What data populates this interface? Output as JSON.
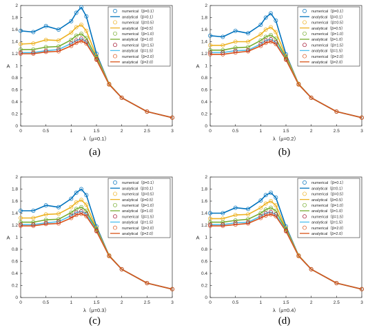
{
  "figure": {
    "panels": [
      {
        "caption": "(a)",
        "xlabel": "λ（μ=0.1）"
      },
      {
        "caption": "(b)",
        "xlabel": "λ（μ=0.2）"
      },
      {
        "caption": "(c)",
        "xlabel": "λ（μ=0.3）"
      },
      {
        "caption": "(d)",
        "xlabel": "λ（μ=0.4）"
      }
    ]
  },
  "chart_data": [
    {
      "type": "line",
      "title": "",
      "xlabel": "λ（μ=0.1）",
      "ylabel": "A",
      "xlim": [
        0,
        3
      ],
      "ylim": [
        0,
        2
      ],
      "xticks": [
        "0",
        "0.5",
        "1",
        "1.5",
        "2",
        "2.5",
        "3"
      ],
      "yticks": [
        "0",
        "0.2",
        "0.4",
        "0.6",
        "0.8",
        "1",
        "1.2",
        "1.4",
        "1.6",
        "1.8",
        "2"
      ],
      "grid": false,
      "legend_position": "top-right",
      "x": [
        0,
        0.25,
        0.5,
        0.75,
        1.0,
        1.1,
        1.2,
        1.3,
        1.5,
        1.75,
        2.0,
        2.5,
        3.0
      ],
      "series": [
        {
          "name": "numerical（β=0.1）",
          "color": "#0072BD",
          "style": "markers",
          "values": [
            1.58,
            1.56,
            1.66,
            1.6,
            1.74,
            1.88,
            1.97,
            1.82,
            1.2,
            0.7,
            0.47,
            0.24,
            0.14
          ]
        },
        {
          "name": "analytical（β=0.1）",
          "color": "#0072BD",
          "style": "line",
          "values": [
            1.58,
            1.56,
            1.66,
            1.6,
            1.74,
            1.88,
            1.97,
            1.82,
            1.2,
            0.7,
            0.47,
            0.24,
            0.14
          ]
        },
        {
          "name": "numerical（β=0.5）",
          "color": "#EDB120",
          "style": "markers",
          "values": [
            1.36,
            1.37,
            1.43,
            1.42,
            1.55,
            1.64,
            1.68,
            1.58,
            1.16,
            0.7,
            0.47,
            0.24,
            0.14
          ]
        },
        {
          "name": "analytical（β=0.5）",
          "color": "#EDB120",
          "style": "line",
          "values": [
            1.36,
            1.37,
            1.43,
            1.42,
            1.55,
            1.64,
            1.68,
            1.58,
            1.16,
            0.7,
            0.47,
            0.24,
            0.14
          ]
        },
        {
          "name": "numerical（β=1.0）",
          "color": "#77AC30",
          "style": "markers",
          "values": [
            1.27,
            1.27,
            1.31,
            1.32,
            1.43,
            1.5,
            1.53,
            1.46,
            1.13,
            0.69,
            0.47,
            0.24,
            0.14
          ]
        },
        {
          "name": "analytical（β=1.0）",
          "color": "#77AC30",
          "style": "line",
          "values": [
            1.27,
            1.27,
            1.31,
            1.32,
            1.43,
            1.5,
            1.53,
            1.46,
            1.13,
            0.69,
            0.47,
            0.24,
            0.14
          ]
        },
        {
          "name": "numerical（β=1.5）",
          "color": "#A2142F",
          "style": "markers",
          "values": [
            1.22,
            1.22,
            1.25,
            1.27,
            1.37,
            1.42,
            1.45,
            1.4,
            1.11,
            0.69,
            0.47,
            0.24,
            0.14
          ]
        },
        {
          "name": "analytical（β=1.5）",
          "color": "#4DBEEE",
          "style": "line",
          "values": [
            1.22,
            1.22,
            1.25,
            1.27,
            1.37,
            1.42,
            1.45,
            1.4,
            1.11,
            0.69,
            0.47,
            0.24,
            0.14
          ]
        },
        {
          "name": "numerical（β=2.0）",
          "color": "#D95319",
          "style": "markers",
          "values": [
            1.2,
            1.2,
            1.23,
            1.24,
            1.33,
            1.38,
            1.41,
            1.37,
            1.1,
            0.69,
            0.47,
            0.24,
            0.14
          ]
        },
        {
          "name": "analytical（β=2.0）",
          "color": "#D95319",
          "style": "line",
          "values": [
            1.2,
            1.2,
            1.23,
            1.24,
            1.33,
            1.38,
            1.41,
            1.37,
            1.1,
            0.69,
            0.47,
            0.24,
            0.14
          ]
        }
      ]
    },
    {
      "type": "line",
      "title": "",
      "xlabel": "λ（μ=0.2）",
      "ylabel": "A",
      "xlim": [
        0,
        3
      ],
      "ylim": [
        0,
        2
      ],
      "xticks": [
        "0",
        "0.5",
        "1",
        "1.5",
        "2",
        "2.5",
        "3"
      ],
      "yticks": [
        "0",
        "0.2",
        "0.4",
        "0.6",
        "0.8",
        "1",
        "1.2",
        "1.4",
        "1.6",
        "1.8",
        "2"
      ],
      "grid": false,
      "legend_position": "top-right",
      "x": [
        0,
        0.25,
        0.5,
        0.75,
        1.0,
        1.1,
        1.2,
        1.3,
        1.5,
        1.75,
        2.0,
        2.5,
        3.0
      ],
      "series": [
        {
          "name": "numerical（β=0.1）",
          "color": "#0072BD",
          "style": "markers",
          "values": [
            1.5,
            1.48,
            1.58,
            1.54,
            1.68,
            1.8,
            1.87,
            1.75,
            1.19,
            0.7,
            0.47,
            0.24,
            0.14
          ]
        },
        {
          "name": "analytical（β=0.1）",
          "color": "#0072BD",
          "style": "line",
          "values": [
            1.5,
            1.48,
            1.58,
            1.54,
            1.68,
            1.8,
            1.87,
            1.75,
            1.19,
            0.7,
            0.47,
            0.24,
            0.14
          ]
        },
        {
          "name": "numerical（β=0.5）",
          "color": "#EDB120",
          "style": "markers",
          "values": [
            1.34,
            1.34,
            1.4,
            1.4,
            1.52,
            1.6,
            1.64,
            1.56,
            1.16,
            0.7,
            0.47,
            0.24,
            0.14
          ]
        },
        {
          "name": "analytical（β=0.5）",
          "color": "#EDB120",
          "style": "line",
          "values": [
            1.34,
            1.34,
            1.4,
            1.4,
            1.52,
            1.6,
            1.64,
            1.56,
            1.16,
            0.7,
            0.47,
            0.24,
            0.14
          ]
        },
        {
          "name": "numerical（β=1.0）",
          "color": "#77AC30",
          "style": "markers",
          "values": [
            1.26,
            1.26,
            1.3,
            1.31,
            1.42,
            1.48,
            1.51,
            1.45,
            1.13,
            0.69,
            0.47,
            0.24,
            0.14
          ]
        },
        {
          "name": "analytical（β=1.0）",
          "color": "#77AC30",
          "style": "line",
          "values": [
            1.26,
            1.26,
            1.3,
            1.31,
            1.42,
            1.48,
            1.51,
            1.45,
            1.13,
            0.69,
            0.47,
            0.24,
            0.14
          ]
        },
        {
          "name": "numerical（β=1.5）",
          "color": "#A2142F",
          "style": "markers",
          "values": [
            1.22,
            1.22,
            1.25,
            1.26,
            1.36,
            1.42,
            1.44,
            1.39,
            1.11,
            0.69,
            0.47,
            0.24,
            0.14
          ]
        },
        {
          "name": "analytical（β=1.5）",
          "color": "#4DBEEE",
          "style": "line",
          "values": [
            1.22,
            1.22,
            1.25,
            1.26,
            1.36,
            1.42,
            1.44,
            1.39,
            1.11,
            0.69,
            0.47,
            0.24,
            0.14
          ]
        },
        {
          "name": "numerical（β=2.0）",
          "color": "#D95319",
          "style": "markers",
          "values": [
            1.19,
            1.19,
            1.22,
            1.24,
            1.33,
            1.38,
            1.4,
            1.36,
            1.1,
            0.69,
            0.47,
            0.24,
            0.14
          ]
        },
        {
          "name": "analytical（β=2.0）",
          "color": "#D95319",
          "style": "line",
          "values": [
            1.19,
            1.19,
            1.22,
            1.24,
            1.33,
            1.38,
            1.4,
            1.36,
            1.1,
            0.69,
            0.47,
            0.24,
            0.14
          ]
        }
      ]
    },
    {
      "type": "line",
      "title": "",
      "xlabel": "λ（μ=0.3）",
      "ylabel": "A",
      "xlim": [
        0,
        3
      ],
      "ylim": [
        0,
        2
      ],
      "xticks": [
        "0",
        "0.5",
        "1",
        "1.5",
        "2",
        "2.5",
        "3"
      ],
      "yticks": [
        "0",
        "0.2",
        "0.4",
        "0.6",
        "0.8",
        "1",
        "1.2",
        "1.4",
        "1.6",
        "1.8",
        "2"
      ],
      "grid": false,
      "legend_position": "top-right",
      "x": [
        0,
        0.25,
        0.5,
        0.75,
        1.0,
        1.1,
        1.2,
        1.3,
        1.5,
        1.75,
        2.0,
        2.5,
        3.0
      ],
      "series": [
        {
          "name": "numerical（β=0.1）",
          "color": "#0072BD",
          "style": "markers",
          "values": [
            1.44,
            1.44,
            1.53,
            1.5,
            1.64,
            1.74,
            1.8,
            1.7,
            1.18,
            0.7,
            0.47,
            0.24,
            0.14
          ]
        },
        {
          "name": "analytical（β=0.1）",
          "color": "#0072BD",
          "style": "line",
          "values": [
            1.44,
            1.44,
            1.53,
            1.5,
            1.64,
            1.74,
            1.8,
            1.7,
            1.18,
            0.7,
            0.47,
            0.24,
            0.14
          ]
        },
        {
          "name": "numerical（β=0.5）",
          "color": "#EDB120",
          "style": "markers",
          "values": [
            1.32,
            1.32,
            1.38,
            1.39,
            1.5,
            1.58,
            1.62,
            1.54,
            1.15,
            0.7,
            0.47,
            0.24,
            0.14
          ]
        },
        {
          "name": "analytical（β=0.5）",
          "color": "#EDB120",
          "style": "line",
          "values": [
            1.32,
            1.32,
            1.38,
            1.39,
            1.5,
            1.58,
            1.62,
            1.54,
            1.15,
            0.7,
            0.47,
            0.24,
            0.14
          ]
        },
        {
          "name": "numerical（β=1.0）",
          "color": "#77AC30",
          "style": "markers",
          "values": [
            1.25,
            1.25,
            1.29,
            1.3,
            1.41,
            1.47,
            1.5,
            1.44,
            1.13,
            0.69,
            0.47,
            0.24,
            0.14
          ]
        },
        {
          "name": "analytical（β=1.0）",
          "color": "#77AC30",
          "style": "line",
          "values": [
            1.25,
            1.25,
            1.29,
            1.3,
            1.41,
            1.47,
            1.5,
            1.44,
            1.13,
            0.69,
            0.47,
            0.24,
            0.14
          ]
        },
        {
          "name": "numerical（β=1.5）",
          "color": "#A2142F",
          "style": "markers",
          "values": [
            1.21,
            1.21,
            1.24,
            1.26,
            1.36,
            1.41,
            1.43,
            1.39,
            1.11,
            0.69,
            0.47,
            0.24,
            0.14
          ]
        },
        {
          "name": "analytical（β=1.5）",
          "color": "#4DBEEE",
          "style": "line",
          "values": [
            1.21,
            1.21,
            1.24,
            1.26,
            1.36,
            1.41,
            1.43,
            1.39,
            1.11,
            0.69,
            0.47,
            0.24,
            0.14
          ]
        },
        {
          "name": "numerical（β=2.0）",
          "color": "#D95319",
          "style": "markers",
          "values": [
            1.19,
            1.19,
            1.22,
            1.23,
            1.32,
            1.37,
            1.39,
            1.35,
            1.1,
            0.69,
            0.47,
            0.24,
            0.14
          ]
        },
        {
          "name": "analytical（β=2.0）",
          "color": "#D95319",
          "style": "line",
          "values": [
            1.19,
            1.19,
            1.22,
            1.23,
            1.32,
            1.37,
            1.39,
            1.35,
            1.1,
            0.69,
            0.47,
            0.24,
            0.14
          ]
        }
      ]
    },
    {
      "type": "line",
      "title": "",
      "xlabel": "λ（μ=0.4）",
      "ylabel": "A",
      "xlim": [
        0,
        3
      ],
      "ylim": [
        0,
        2
      ],
      "xticks": [
        "0",
        "0.5",
        "1",
        "1.5",
        "2",
        "2.5",
        "3"
      ],
      "yticks": [
        "0",
        "0.2",
        "0.4",
        "0.6",
        "0.8",
        "1",
        "1.2",
        "1.4",
        "1.6",
        "1.8",
        "2"
      ],
      "grid": false,
      "legend_position": "top-right",
      "x": [
        0,
        0.25,
        0.5,
        0.75,
        1.0,
        1.1,
        1.2,
        1.3,
        1.5,
        1.75,
        2.0,
        2.5,
        3.0
      ],
      "series": [
        {
          "name": "numerical（β=0.1）",
          "color": "#0072BD",
          "style": "markers",
          "values": [
            1.4,
            1.4,
            1.49,
            1.47,
            1.61,
            1.7,
            1.74,
            1.66,
            1.18,
            0.7,
            0.47,
            0.24,
            0.14
          ]
        },
        {
          "name": "analytical（β=0.1）",
          "color": "#0072BD",
          "style": "line",
          "values": [
            1.4,
            1.4,
            1.49,
            1.47,
            1.61,
            1.7,
            1.74,
            1.66,
            1.18,
            0.7,
            0.47,
            0.24,
            0.14
          ]
        },
        {
          "name": "numerical（β=0.5）",
          "color": "#EDB120",
          "style": "markers",
          "values": [
            1.31,
            1.31,
            1.37,
            1.38,
            1.49,
            1.56,
            1.6,
            1.53,
            1.15,
            0.7,
            0.47,
            0.24,
            0.14
          ]
        },
        {
          "name": "analytical（β=0.5）",
          "color": "#EDB120",
          "style": "line",
          "values": [
            1.31,
            1.31,
            1.37,
            1.38,
            1.49,
            1.56,
            1.6,
            1.53,
            1.15,
            0.7,
            0.47,
            0.24,
            0.14
          ]
        },
        {
          "name": "numerical（β=1.0）",
          "color": "#77AC30",
          "style": "markers",
          "values": [
            1.25,
            1.25,
            1.28,
            1.3,
            1.4,
            1.46,
            1.49,
            1.44,
            1.13,
            0.69,
            0.47,
            0.24,
            0.14
          ]
        },
        {
          "name": "analytical（β=1.0）",
          "color": "#77AC30",
          "style": "line",
          "values": [
            1.25,
            1.25,
            1.28,
            1.3,
            1.4,
            1.46,
            1.49,
            1.44,
            1.13,
            0.69,
            0.47,
            0.24,
            0.14
          ]
        },
        {
          "name": "numerical（β=1.5）",
          "color": "#A2142F",
          "style": "markers",
          "values": [
            1.21,
            1.21,
            1.24,
            1.25,
            1.35,
            1.4,
            1.42,
            1.38,
            1.11,
            0.69,
            0.47,
            0.24,
            0.14
          ]
        },
        {
          "name": "analytical（β=1.5）",
          "color": "#4DBEEE",
          "style": "line",
          "values": [
            1.21,
            1.21,
            1.24,
            1.25,
            1.35,
            1.4,
            1.42,
            1.38,
            1.11,
            0.69,
            0.47,
            0.24,
            0.14
          ]
        },
        {
          "name": "numerical（β=2.0）",
          "color": "#D95319",
          "style": "markers",
          "values": [
            1.19,
            1.19,
            1.21,
            1.23,
            1.32,
            1.36,
            1.38,
            1.35,
            1.1,
            0.69,
            0.47,
            0.24,
            0.14
          ]
        },
        {
          "name": "analytical（β=2.0）",
          "color": "#D95319",
          "style": "line",
          "values": [
            1.19,
            1.19,
            1.21,
            1.23,
            1.32,
            1.36,
            1.38,
            1.35,
            1.1,
            0.69,
            0.47,
            0.24,
            0.14
          ]
        }
      ]
    }
  ]
}
